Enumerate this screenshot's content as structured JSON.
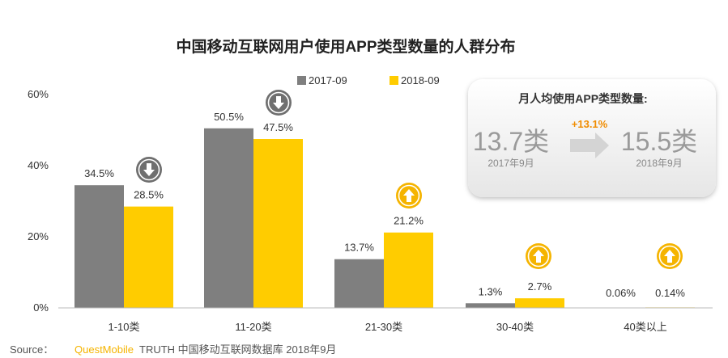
{
  "chart_data": {
    "type": "bar",
    "title": "中国移动互联网用户使用APP类型数量的人群分布",
    "categories": [
      "1-10类",
      "11-20类",
      "21-30类",
      "30-40类",
      "40类以上"
    ],
    "series": [
      {
        "name": "2017-09",
        "values": [
          34.5,
          50.5,
          13.7,
          1.3,
          0.06
        ],
        "labels": [
          "34.5%",
          "50.5%",
          "13.7%",
          "1.3%",
          "0.06%"
        ],
        "color": "#7f7f7f"
      },
      {
        "name": "2018-09",
        "values": [
          28.5,
          47.5,
          21.2,
          2.7,
          0.14
        ],
        "labels": [
          "28.5%",
          "47.5%",
          "21.2%",
          "2.7%",
          "0.14%"
        ],
        "color": "#ffcc00"
      }
    ],
    "ylim": [
      0,
      60
    ],
    "yticks": [
      0,
      20,
      40,
      60
    ],
    "ytick_labels": [
      "0%",
      "20%",
      "40%",
      "60%"
    ],
    "trend_icons": [
      "down",
      "down",
      "up",
      "up",
      "up"
    ],
    "xlabel": "",
    "ylabel": ""
  },
  "summary_box": {
    "title": "月人均使用APP类型数量:",
    "before_value": "13.7类",
    "before_date": "2017年9月",
    "growth": "+13.1%",
    "after_value": "15.5类",
    "after_date": "2018年9月"
  },
  "source": {
    "prefix": "Source：",
    "brand": "QuestMobile",
    "rest": "TRUTH 中国移动互联网数据库 2018年9月"
  },
  "colors": {
    "gray": "#7f7f7f",
    "yellow": "#ffcc00",
    "icon_down": "#6f6f6f",
    "icon_up": "#f5b400"
  }
}
